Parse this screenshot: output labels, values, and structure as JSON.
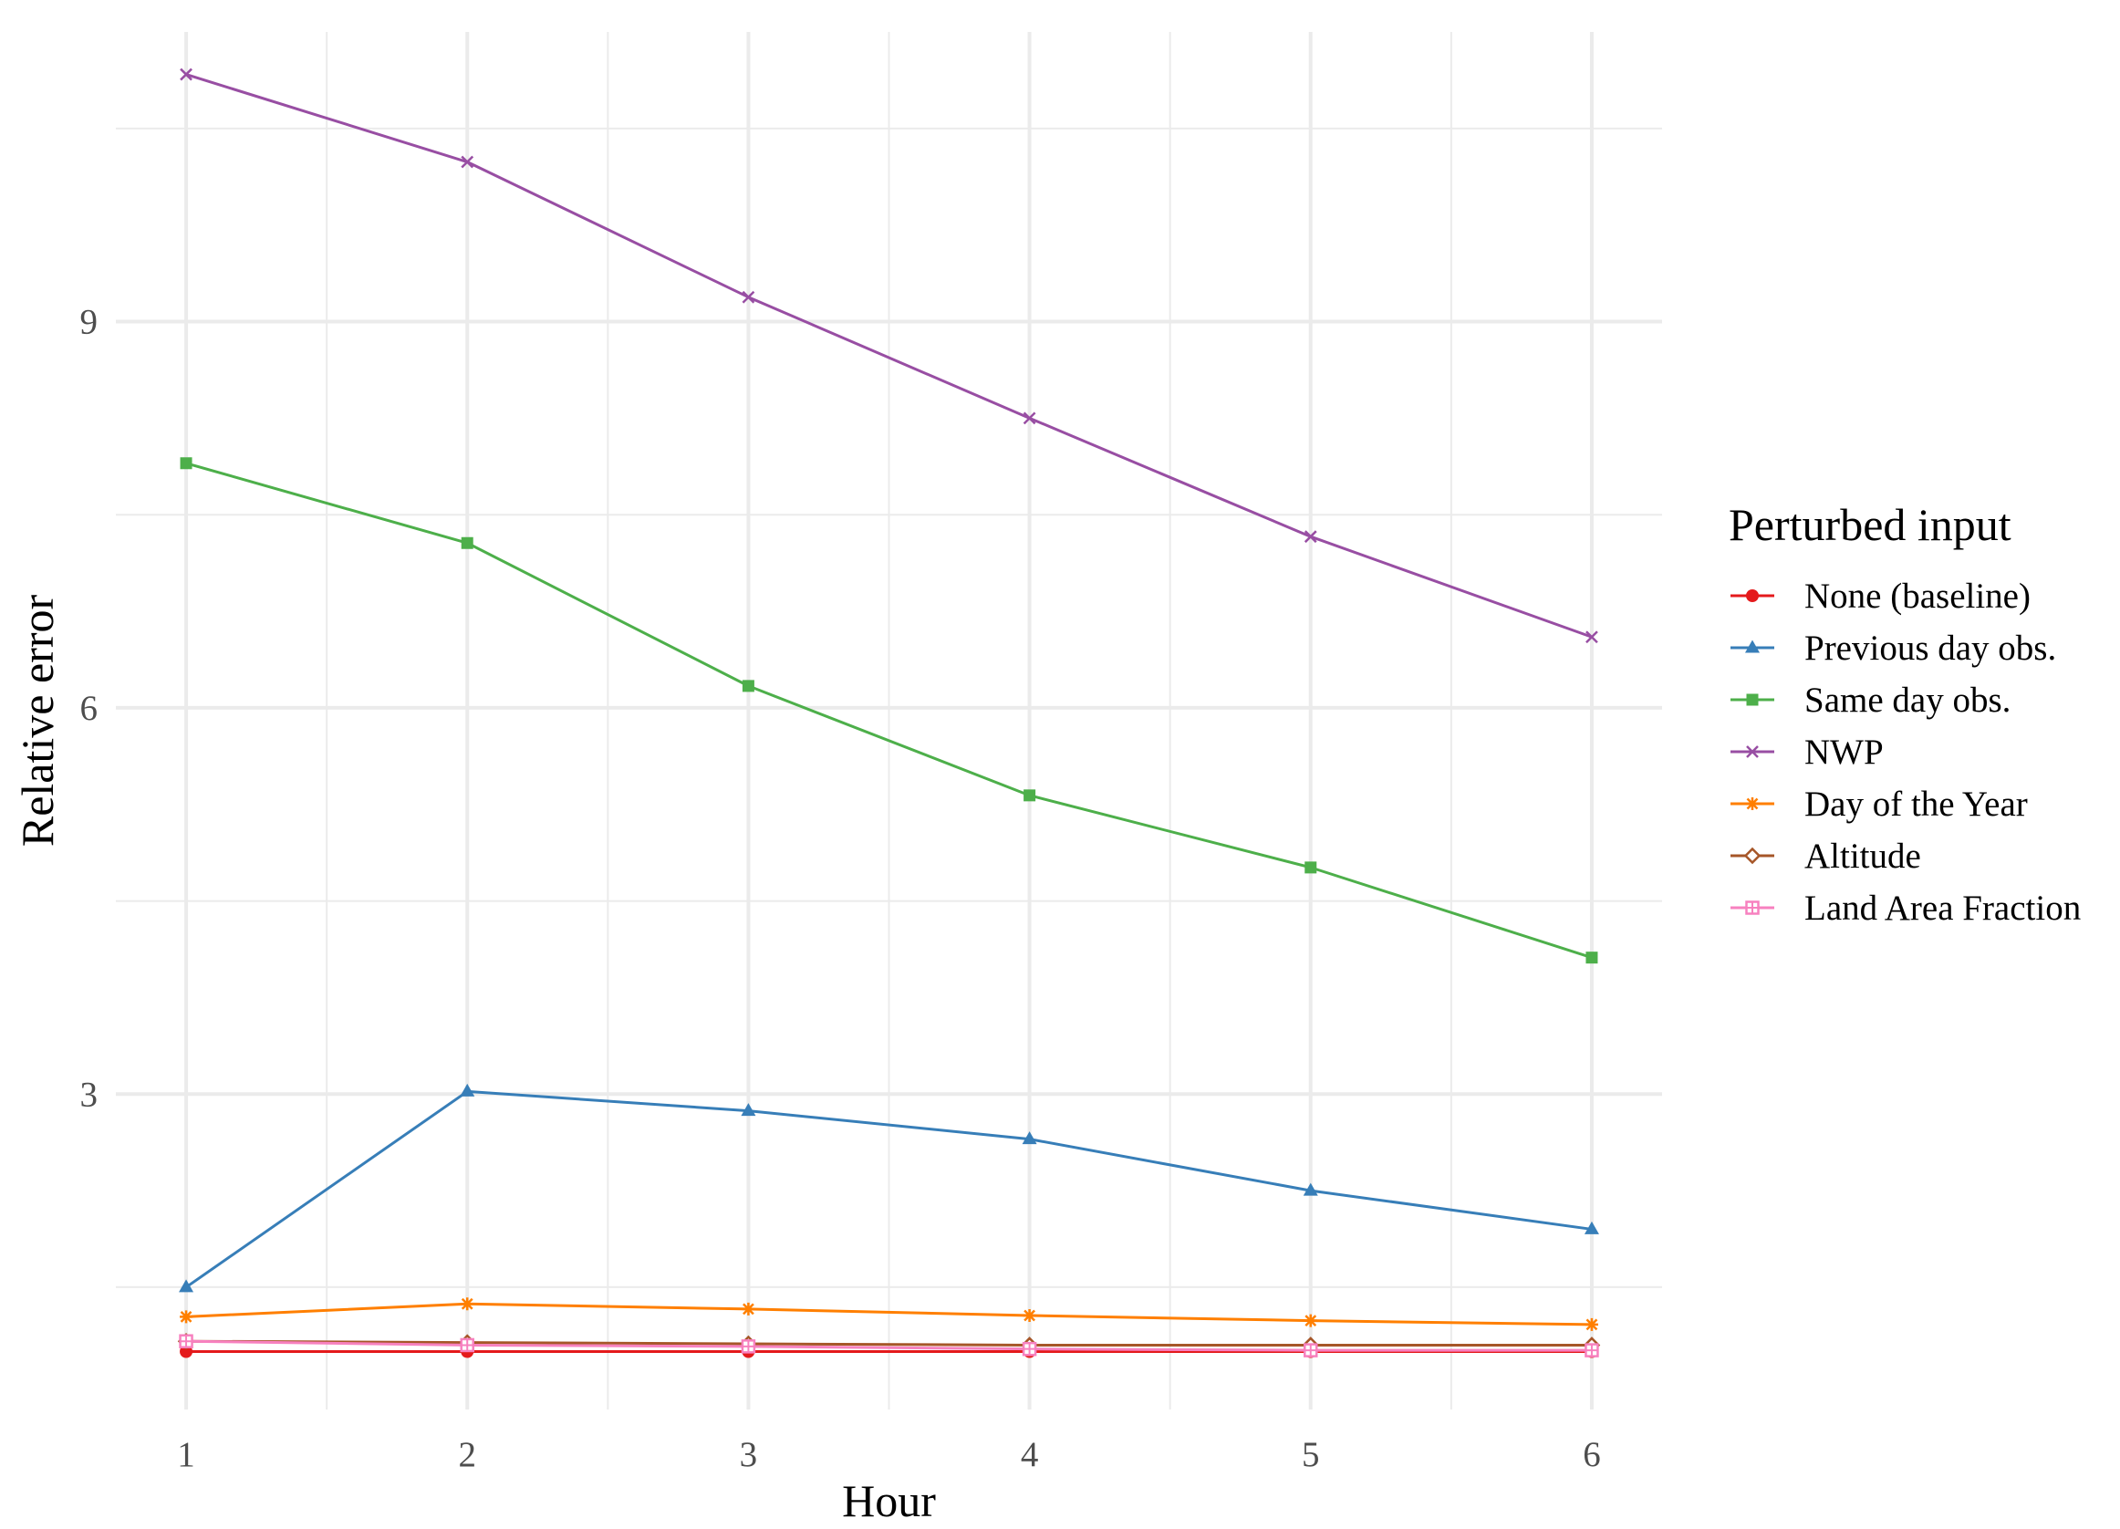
{
  "chart_data": {
    "type": "line",
    "title": "",
    "xlabel": "Hour",
    "ylabel": "Relative error",
    "x": [
      1,
      2,
      3,
      4,
      5,
      6
    ],
    "xlim": [
      0.75,
      6.25
    ],
    "ylim": [
      0.55,
      11.25
    ],
    "x_ticks": [
      1,
      2,
      3,
      4,
      5,
      6
    ],
    "y_ticks": [
      3,
      6,
      9
    ],
    "grid": true,
    "legend": {
      "title": "Perturbed input",
      "placement": "right"
    },
    "series": [
      {
        "name": "None (baseline)",
        "color": "#e41a1c",
        "marker": "circle",
        "values": [
          1.0,
          1.0,
          1.0,
          1.0,
          1.0,
          1.0
        ]
      },
      {
        "name": "Previous day obs.",
        "color": "#377eb8",
        "marker": "triangle",
        "values": [
          1.5,
          3.02,
          2.87,
          2.65,
          2.25,
          1.95
        ]
      },
      {
        "name": "Same day obs.",
        "color": "#4daf4a",
        "marker": "square",
        "values": [
          7.9,
          7.28,
          6.17,
          5.32,
          4.76,
          4.06
        ]
      },
      {
        "name": "NWP",
        "color": "#984ea3",
        "marker": "x",
        "values": [
          10.92,
          10.24,
          9.19,
          8.25,
          7.33,
          6.55
        ]
      },
      {
        "name": "Day of the Year",
        "color": "#ff7f00",
        "marker": "asterisk",
        "values": [
          1.27,
          1.37,
          1.33,
          1.28,
          1.24,
          1.21
        ]
      },
      {
        "name": "Altitude",
        "color": "#a65628",
        "marker": "diamond",
        "values": [
          1.08,
          1.07,
          1.06,
          1.05,
          1.05,
          1.05
        ]
      },
      {
        "name": "Land Area Fraction",
        "color": "#f781bf",
        "marker": "square-cross",
        "values": [
          1.08,
          1.05,
          1.04,
          1.02,
          1.01,
          1.01
        ]
      }
    ]
  }
}
